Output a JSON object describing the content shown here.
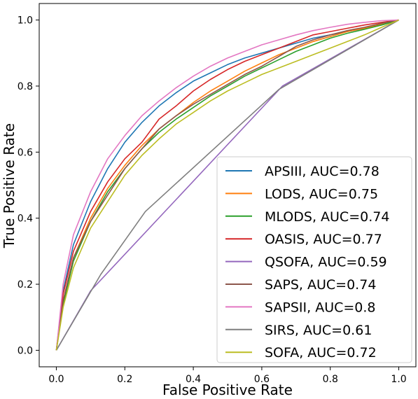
{
  "chart_data": {
    "type": "line",
    "title": "",
    "xlabel": "False Positive Rate",
    "ylabel": "True Positive Rate",
    "xlim": [
      -0.05,
      1.05
    ],
    "ylim": [
      -0.05,
      1.05
    ],
    "xticks": [
      "0.0",
      "0.2",
      "0.4",
      "0.6",
      "0.8",
      "1.0"
    ],
    "yticks": [
      "0.0",
      "0.2",
      "0.4",
      "0.6",
      "0.8",
      "1.0"
    ],
    "grid": false,
    "legend_position": "lower-right",
    "series": [
      {
        "name": "APSIII, AUC=0.78",
        "color": "#1f77b4",
        "points": [
          [
            0,
            0
          ],
          [
            0.02,
            0.18
          ],
          [
            0.05,
            0.32
          ],
          [
            0.1,
            0.45
          ],
          [
            0.15,
            0.55
          ],
          [
            0.2,
            0.63
          ],
          [
            0.25,
            0.69
          ],
          [
            0.3,
            0.74
          ],
          [
            0.35,
            0.78
          ],
          [
            0.4,
            0.815
          ],
          [
            0.45,
            0.84
          ],
          [
            0.5,
            0.865
          ],
          [
            0.55,
            0.885
          ],
          [
            0.6,
            0.9
          ],
          [
            0.65,
            0.915
          ],
          [
            0.7,
            0.93
          ],
          [
            0.75,
            0.945
          ],
          [
            0.8,
            0.955
          ],
          [
            0.85,
            0.965
          ],
          [
            0.9,
            0.975
          ],
          [
            0.95,
            0.985
          ],
          [
            1,
            1
          ]
        ]
      },
      {
        "name": "LODS, AUC=0.75",
        "color": "#ff7f0e",
        "points": [
          [
            0,
            0
          ],
          [
            0.02,
            0.15
          ],
          [
            0.05,
            0.28
          ],
          [
            0.1,
            0.4
          ],
          [
            0.15,
            0.49
          ],
          [
            0.2,
            0.56
          ],
          [
            0.25,
            0.62
          ],
          [
            0.3,
            0.67
          ],
          [
            0.35,
            0.71
          ],
          [
            0.4,
            0.75
          ],
          [
            0.45,
            0.785
          ],
          [
            0.5,
            0.815
          ],
          [
            0.55,
            0.845
          ],
          [
            0.6,
            0.87
          ],
          [
            0.65,
            0.895
          ],
          [
            0.7,
            0.915
          ],
          [
            0.75,
            0.935
          ],
          [
            0.8,
            0.95
          ],
          [
            0.85,
            0.965
          ],
          [
            0.9,
            0.975
          ],
          [
            0.95,
            0.988
          ],
          [
            1,
            1
          ]
        ]
      },
      {
        "name": "MLODS, AUC=0.74",
        "color": "#2ca02c",
        "points": [
          [
            0,
            0
          ],
          [
            0.02,
            0.14
          ],
          [
            0.05,
            0.27
          ],
          [
            0.1,
            0.39
          ],
          [
            0.15,
            0.48
          ],
          [
            0.2,
            0.55
          ],
          [
            0.25,
            0.61
          ],
          [
            0.3,
            0.66
          ],
          [
            0.35,
            0.7
          ],
          [
            0.4,
            0.735
          ],
          [
            0.45,
            0.77
          ],
          [
            0.5,
            0.8
          ],
          [
            0.55,
            0.83
          ],
          [
            0.6,
            0.855
          ],
          [
            0.65,
            0.88
          ],
          [
            0.7,
            0.905
          ],
          [
            0.75,
            0.925
          ],
          [
            0.8,
            0.945
          ],
          [
            0.85,
            0.96
          ],
          [
            0.9,
            0.972
          ],
          [
            0.95,
            0.985
          ],
          [
            1,
            1
          ]
        ]
      },
      {
        "name": "OASIS, AUC=0.77",
        "color": "#d62728",
        "points": [
          [
            0,
            0
          ],
          [
            0.02,
            0.17
          ],
          [
            0.05,
            0.3
          ],
          [
            0.1,
            0.42
          ],
          [
            0.15,
            0.51
          ],
          [
            0.2,
            0.58
          ],
          [
            0.25,
            0.63
          ],
          [
            0.3,
            0.7
          ],
          [
            0.35,
            0.74
          ],
          [
            0.4,
            0.785
          ],
          [
            0.45,
            0.82
          ],
          [
            0.5,
            0.85
          ],
          [
            0.55,
            0.875
          ],
          [
            0.6,
            0.895
          ],
          [
            0.65,
            0.915
          ],
          [
            0.7,
            0.935
          ],
          [
            0.75,
            0.955
          ],
          [
            0.8,
            0.965
          ],
          [
            0.85,
            0.975
          ],
          [
            0.9,
            0.985
          ],
          [
            0.95,
            0.993
          ],
          [
            1,
            1
          ]
        ]
      },
      {
        "name": "QSOFA, AUC=0.59",
        "color": "#9467bd",
        "points": [
          [
            0,
            0
          ],
          [
            0.1,
            0.18
          ],
          [
            0.66,
            0.8
          ],
          [
            1,
            1
          ]
        ]
      },
      {
        "name": "SAPS, AUC=0.74",
        "color": "#8c564b",
        "points": [
          [
            0,
            0
          ],
          [
            0.02,
            0.15
          ],
          [
            0.05,
            0.28
          ],
          [
            0.1,
            0.39
          ],
          [
            0.15,
            0.47
          ],
          [
            0.2,
            0.55
          ],
          [
            0.25,
            0.61
          ],
          [
            0.3,
            0.67
          ],
          [
            0.35,
            0.71
          ],
          [
            0.4,
            0.745
          ],
          [
            0.45,
            0.775
          ],
          [
            0.5,
            0.805
          ],
          [
            0.55,
            0.835
          ],
          [
            0.6,
            0.86
          ],
          [
            0.65,
            0.89
          ],
          [
            0.7,
            0.92
          ],
          [
            0.75,
            0.94
          ],
          [
            0.8,
            0.955
          ],
          [
            0.85,
            0.968
          ],
          [
            0.9,
            0.978
          ],
          [
            0.95,
            0.99
          ],
          [
            1,
            1
          ]
        ]
      },
      {
        "name": "SAPSII, AUC=0.8",
        "color": "#e377c2",
        "points": [
          [
            0,
            0
          ],
          [
            0.02,
            0.2
          ],
          [
            0.05,
            0.35
          ],
          [
            0.1,
            0.48
          ],
          [
            0.15,
            0.58
          ],
          [
            0.2,
            0.65
          ],
          [
            0.25,
            0.71
          ],
          [
            0.3,
            0.755
          ],
          [
            0.35,
            0.795
          ],
          [
            0.4,
            0.83
          ],
          [
            0.45,
            0.86
          ],
          [
            0.5,
            0.885
          ],
          [
            0.55,
            0.905
          ],
          [
            0.6,
            0.925
          ],
          [
            0.65,
            0.94
          ],
          [
            0.7,
            0.955
          ],
          [
            0.75,
            0.968
          ],
          [
            0.8,
            0.978
          ],
          [
            0.85,
            0.987
          ],
          [
            0.9,
            0.993
          ],
          [
            0.95,
            0.998
          ],
          [
            1,
            1
          ]
        ]
      },
      {
        "name": "SIRS, AUC=0.61",
        "color": "#7f7f7f",
        "points": [
          [
            0,
            0
          ],
          [
            0.13,
            0.23
          ],
          [
            0.26,
            0.42
          ],
          [
            0.65,
            0.79
          ],
          [
            1,
            1
          ]
        ]
      },
      {
        "name": "SOFA, AUC=0.72",
        "color": "#bcbd22",
        "points": [
          [
            0,
            0
          ],
          [
            0.02,
            0.13
          ],
          [
            0.05,
            0.25
          ],
          [
            0.1,
            0.37
          ],
          [
            0.15,
            0.45
          ],
          [
            0.2,
            0.53
          ],
          [
            0.25,
            0.59
          ],
          [
            0.3,
            0.64
          ],
          [
            0.35,
            0.685
          ],
          [
            0.4,
            0.72
          ],
          [
            0.45,
            0.755
          ],
          [
            0.5,
            0.785
          ],
          [
            0.55,
            0.81
          ],
          [
            0.6,
            0.835
          ],
          [
            0.65,
            0.855
          ],
          [
            0.7,
            0.875
          ],
          [
            0.75,
            0.895
          ],
          [
            0.8,
            0.915
          ],
          [
            0.85,
            0.935
          ],
          [
            0.9,
            0.955
          ],
          [
            0.95,
            0.978
          ],
          [
            1,
            1
          ]
        ]
      }
    ]
  }
}
